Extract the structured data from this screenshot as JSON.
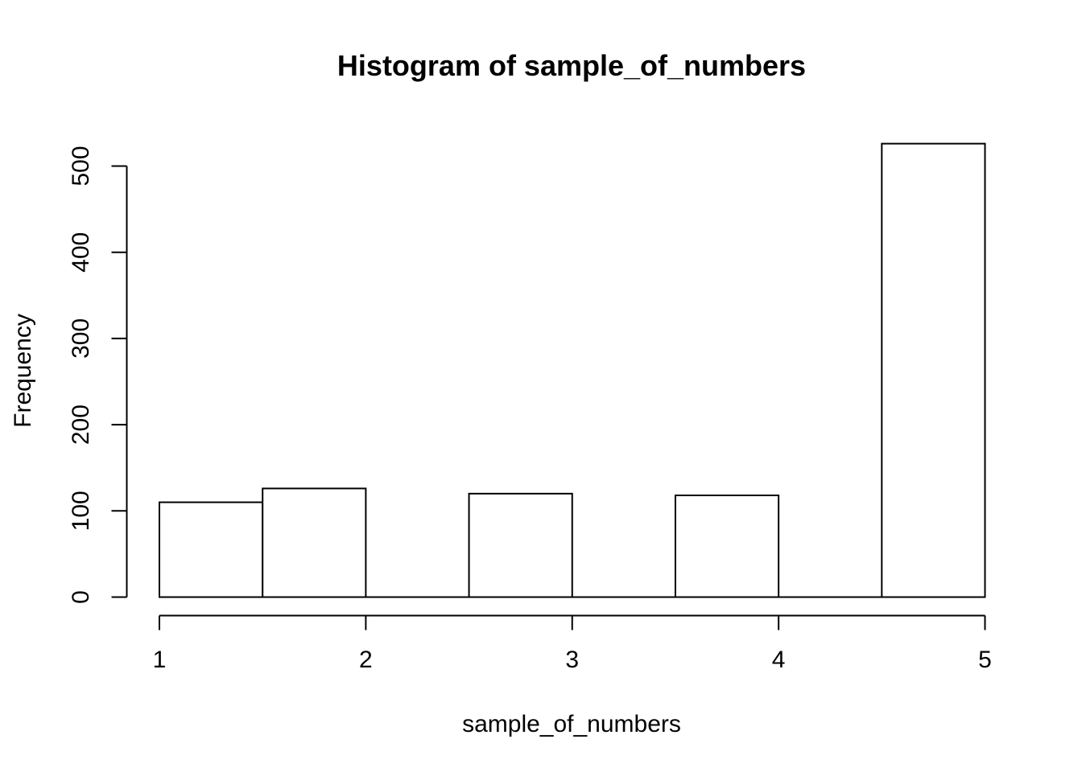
{
  "window": {
    "background": "#ffffff"
  },
  "chart_data": {
    "type": "bar",
    "subtype": "histogram",
    "title": "Histogram of sample_of_numbers",
    "xlabel": "sample_of_numbers",
    "ylabel": "Frequency",
    "bins": [
      {
        "from": 1.0,
        "to": 1.5,
        "count": 110
      },
      {
        "from": 1.5,
        "to": 2.0,
        "count": 126
      },
      {
        "from": 2.0,
        "to": 2.5,
        "count": 0
      },
      {
        "from": 2.5,
        "to": 3.0,
        "count": 120
      },
      {
        "from": 3.0,
        "to": 3.5,
        "count": 0
      },
      {
        "from": 3.5,
        "to": 4.0,
        "count": 118
      },
      {
        "from": 4.0,
        "to": 4.5,
        "count": 0
      },
      {
        "from": 4.5,
        "to": 5.0,
        "count": 526
      }
    ],
    "x_ticks": [
      1,
      2,
      3,
      4,
      5
    ],
    "y_ticks": [
      0,
      100,
      200,
      300,
      400,
      500
    ],
    "xlim": [
      1,
      5
    ],
    "ylim": [
      0,
      530
    ],
    "y_axis_range": [
      0,
      500
    ],
    "grid": false,
    "legend": null,
    "bar_fill": "#ffffff",
    "bar_border": "#000000",
    "axis_color": "#000000",
    "text_color": "#000000"
  }
}
